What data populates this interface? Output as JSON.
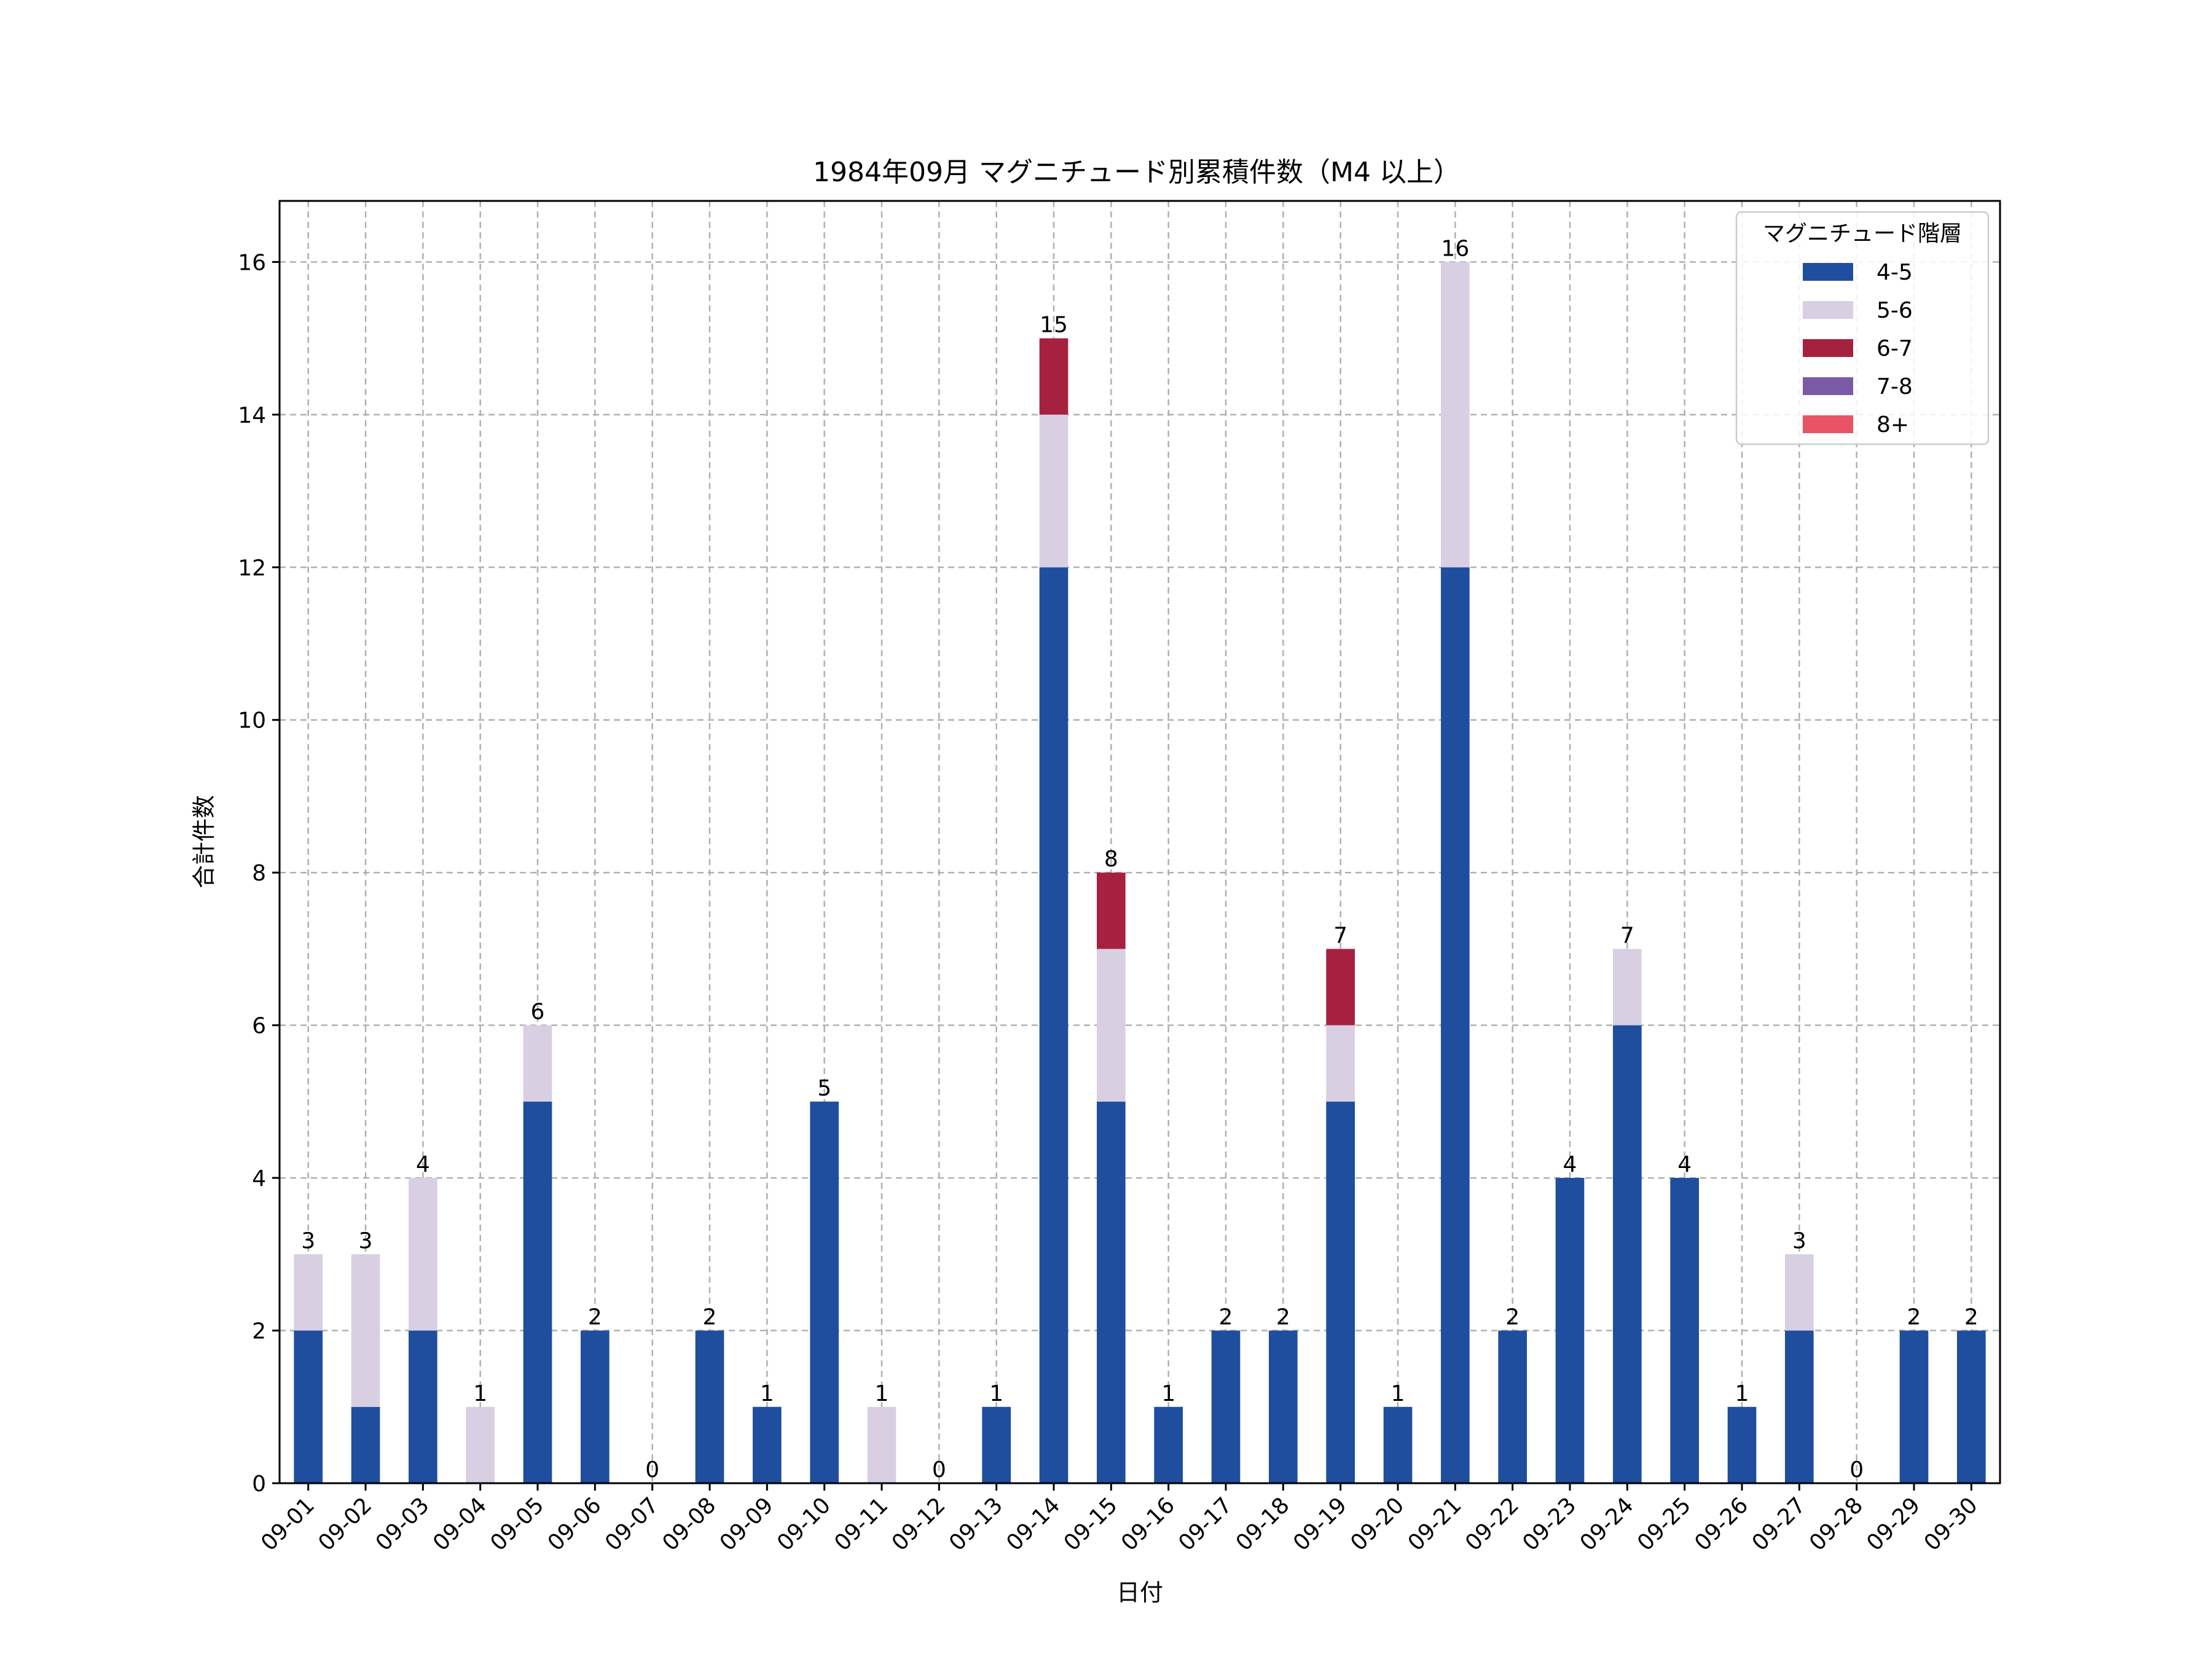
{
  "chart_data": {
    "type": "bar",
    "stacked": true,
    "title": "1984年09月 マグニチュード別累積件数（M4 以上）",
    "xlabel": "日付",
    "ylabel": "合計件数",
    "ylim": [
      0,
      16.8
    ],
    "yticks": [
      0,
      2,
      4,
      6,
      8,
      10,
      12,
      14,
      16
    ],
    "grid": true,
    "legend_title": "マグニチュード階層",
    "legend_position": "top-right",
    "categories": [
      "09-01",
      "09-02",
      "09-03",
      "09-04",
      "09-05",
      "09-06",
      "09-07",
      "09-08",
      "09-09",
      "09-10",
      "09-11",
      "09-12",
      "09-13",
      "09-14",
      "09-15",
      "09-16",
      "09-17",
      "09-18",
      "09-19",
      "09-20",
      "09-21",
      "09-22",
      "09-23",
      "09-24",
      "09-25",
      "09-26",
      "09-27",
      "09-28",
      "09-29",
      "09-30"
    ],
    "series": [
      {
        "name": "4-5",
        "color": "#1f4e9e",
        "values": [
          2,
          1,
          2,
          0,
          5,
          2,
          0,
          2,
          1,
          5,
          0,
          0,
          1,
          12,
          5,
          1,
          2,
          2,
          5,
          1,
          12,
          2,
          4,
          6,
          4,
          1,
          2,
          0,
          2,
          2
        ]
      },
      {
        "name": "5-6",
        "color": "#d9cfe3",
        "values": [
          1,
          2,
          2,
          1,
          1,
          0,
          0,
          0,
          0,
          0,
          1,
          0,
          0,
          2,
          2,
          0,
          0,
          0,
          1,
          0,
          4,
          0,
          0,
          1,
          0,
          0,
          1,
          0,
          0,
          0
        ]
      },
      {
        "name": "6-7",
        "color": "#a6213f",
        "values": [
          0,
          0,
          0,
          0,
          0,
          0,
          0,
          0,
          0,
          0,
          0,
          0,
          0,
          1,
          1,
          0,
          0,
          0,
          1,
          0,
          0,
          0,
          0,
          0,
          0,
          0,
          0,
          0,
          0,
          0
        ]
      },
      {
        "name": "7-8",
        "color": "#7a5aa6",
        "values": [
          0,
          0,
          0,
          0,
          0,
          0,
          0,
          0,
          0,
          0,
          0,
          0,
          0,
          0,
          0,
          0,
          0,
          0,
          0,
          0,
          0,
          0,
          0,
          0,
          0,
          0,
          0,
          0,
          0,
          0
        ]
      },
      {
        "name": "8+",
        "color": "#e85466",
        "values": [
          0,
          0,
          0,
          0,
          0,
          0,
          0,
          0,
          0,
          0,
          0,
          0,
          0,
          0,
          0,
          0,
          0,
          0,
          0,
          0,
          0,
          0,
          0,
          0,
          0,
          0,
          0,
          0,
          0,
          0
        ]
      }
    ],
    "totals": [
      3,
      3,
      4,
      1,
      6,
      2,
      0,
      2,
      1,
      5,
      1,
      0,
      1,
      15,
      8,
      1,
      2,
      2,
      7,
      1,
      16,
      2,
      4,
      7,
      4,
      1,
      3,
      0,
      2,
      2
    ]
  }
}
